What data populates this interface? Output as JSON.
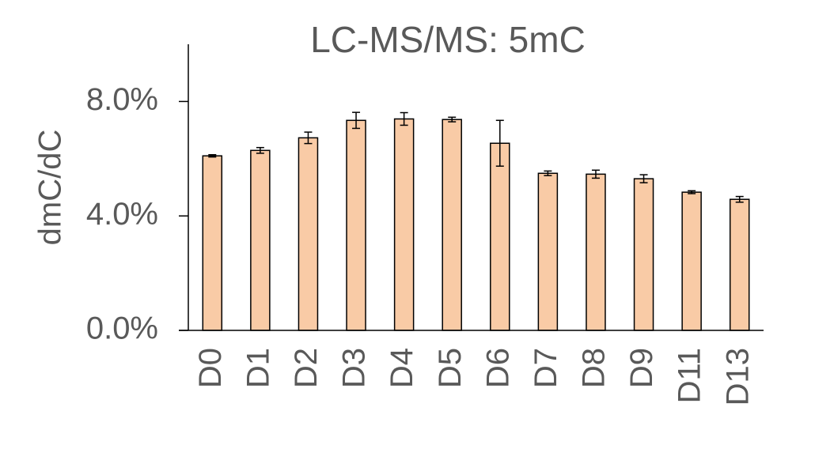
{
  "chart_data": {
    "type": "bar",
    "title": "LC-MS/MS: 5mC",
    "y_label": "dmC/dC",
    "categories": [
      "D0",
      "D1",
      "D2",
      "D3",
      "D4",
      "D5",
      "D6",
      "D7",
      "D8",
      "D9",
      "D11",
      "D13"
    ],
    "values": [
      6.1,
      6.29,
      6.73,
      7.34,
      7.39,
      7.37,
      6.54,
      5.49,
      5.46,
      5.3,
      4.83,
      4.58
    ],
    "errors": [
      0.04,
      0.1,
      0.2,
      0.28,
      0.22,
      0.08,
      0.8,
      0.08,
      0.14,
      0.14,
      0.05,
      0.1
    ],
    "color": "#f9cba6",
    "ylim": [
      0,
      10
    ],
    "yticks": [
      {
        "value": 0,
        "label": "0.0%"
      },
      {
        "value": 4,
        "label": "4.0%"
      },
      {
        "value": 8,
        "label": "8.0%"
      }
    ],
    "grid": false
  }
}
